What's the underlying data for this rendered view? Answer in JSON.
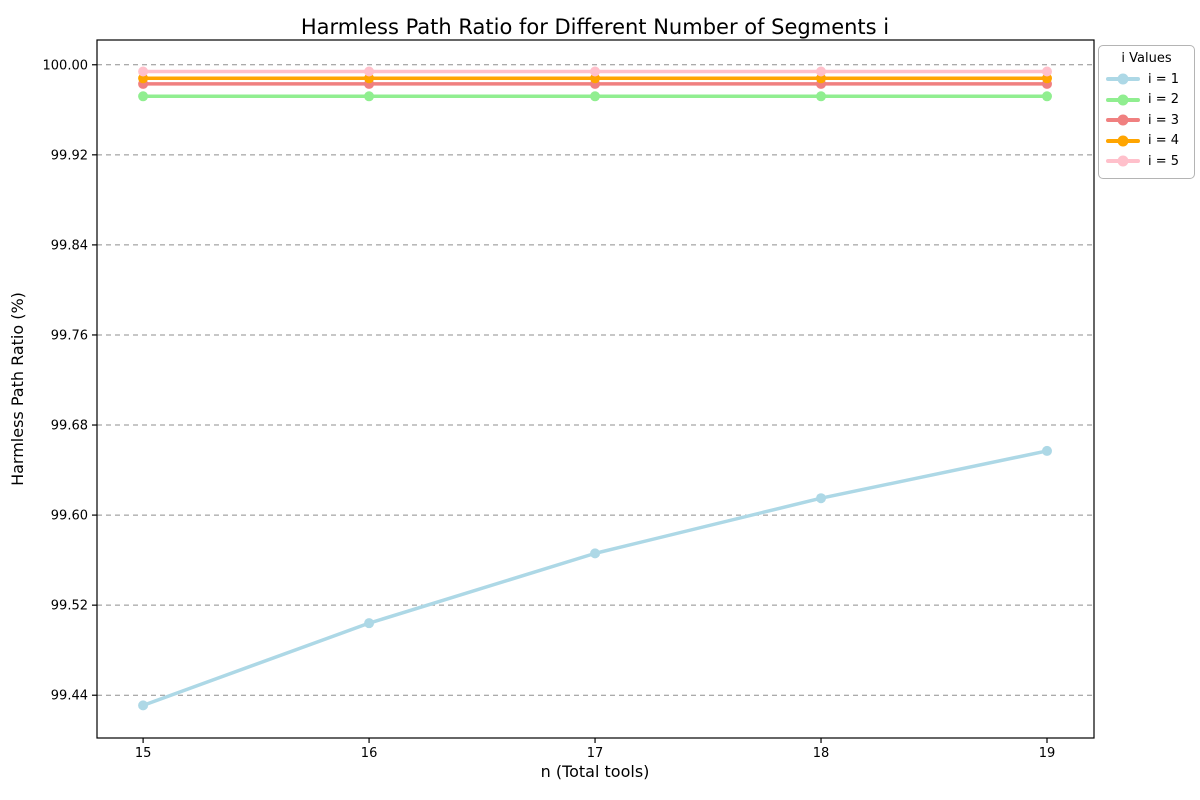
{
  "chart_data": {
    "type": "line",
    "title": "Harmless Path Ratio for Different Number of Segments i",
    "xlabel": "n (Total tools)",
    "ylabel": "Harmless Path Ratio (%)",
    "x": [
      15,
      16,
      17,
      18,
      19
    ],
    "xtick_labels": [
      "15",
      "16",
      "17",
      "18",
      "19"
    ],
    "ytick_values": [
      100.0,
      99.92,
      99.84,
      99.76,
      99.68,
      99.6,
      99.52,
      99.44
    ],
    "ytick_labels": [
      "100.00",
      "99.92",
      "99.84",
      "99.76",
      "99.68",
      "99.60",
      "99.52",
      "99.44"
    ],
    "xlim": [
      14.796,
      19.208
    ],
    "ylim": [
      99.402,
      100.022
    ],
    "grid": {
      "axis": "y",
      "style": "dashed",
      "color": "#8f8f8f"
    },
    "background_color": "#ffffff",
    "spine_color": "#000000",
    "legend": {
      "title": "i Values",
      "position": "upper-right-outside"
    },
    "series": [
      {
        "name": "i = 1",
        "color": "#ADD8E6",
        "values": [
          99.431,
          99.504,
          99.566,
          99.615,
          99.657
        ]
      },
      {
        "name": "i = 2",
        "color": "#90EE90",
        "values": [
          99.972,
          99.972,
          99.972,
          99.972,
          99.972
        ]
      },
      {
        "name": "i = 3",
        "color": "#F08080",
        "values": [
          99.983,
          99.983,
          99.983,
          99.983,
          99.983
        ]
      },
      {
        "name": "i = 4",
        "color": "#FFA500",
        "values": [
          99.988,
          99.988,
          99.988,
          99.988,
          99.988
        ]
      },
      {
        "name": "i = 5",
        "color": "#FFC0CB",
        "values": [
          99.994,
          99.994,
          99.994,
          99.994,
          99.994
        ]
      }
    ]
  }
}
